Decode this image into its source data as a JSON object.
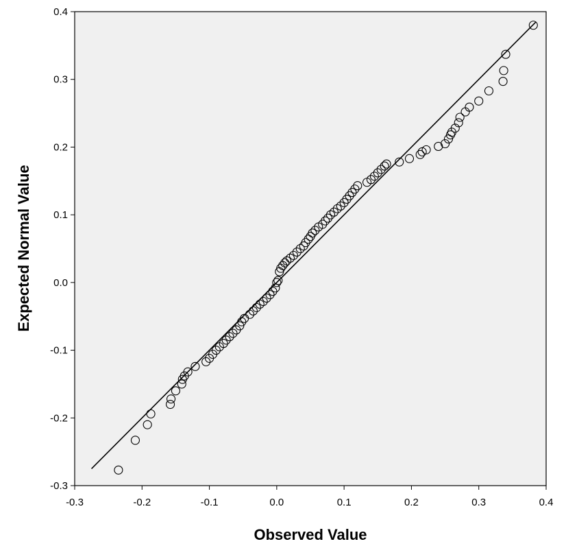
{
  "chart_data": {
    "type": "scatter",
    "subtype": "normal-qq-plot",
    "xlabel": "Observed Value",
    "ylabel": "Expected Normal Value",
    "xlim": [
      -0.3,
      0.4
    ],
    "ylim": [
      -0.3,
      0.4
    ],
    "xticks": [
      "-0.3",
      "-0.2",
      "-0.1",
      "0.0",
      "0.1",
      "0.2",
      "0.3",
      "0.4"
    ],
    "yticks": [
      "-0.3",
      "-0.2",
      "-0.1",
      "0.0",
      "0.1",
      "0.2",
      "0.3",
      "0.4"
    ],
    "grid": false,
    "reference_line": {
      "x": [
        -0.275,
        0.385
      ],
      "y": [
        -0.275,
        0.385
      ]
    },
    "colors": {
      "plot_background": "#f0f0f0",
      "points": "#000000",
      "line": "#000000"
    },
    "points": [
      [
        -0.235,
        -0.277
      ],
      [
        -0.21,
        -0.233
      ],
      [
        -0.192,
        -0.21
      ],
      [
        -0.187,
        -0.194
      ],
      [
        -0.158,
        -0.18
      ],
      [
        -0.157,
        -0.172
      ],
      [
        -0.15,
        -0.16
      ],
      [
        -0.141,
        -0.15
      ],
      [
        -0.14,
        -0.143
      ],
      [
        -0.137,
        -0.138
      ],
      [
        -0.132,
        -0.132
      ],
      [
        -0.121,
        -0.124
      ],
      [
        -0.105,
        -0.117
      ],
      [
        -0.1,
        -0.112
      ],
      [
        -0.095,
        -0.106
      ],
      [
        -0.09,
        -0.1
      ],
      [
        -0.085,
        -0.095
      ],
      [
        -0.079,
        -0.09
      ],
      [
        -0.075,
        -0.085
      ],
      [
        -0.07,
        -0.08
      ],
      [
        -0.065,
        -0.075
      ],
      [
        -0.06,
        -0.07
      ],
      [
        -0.055,
        -0.064
      ],
      [
        -0.052,
        -0.058
      ],
      [
        -0.048,
        -0.053
      ],
      [
        -0.04,
        -0.047
      ],
      [
        -0.035,
        -0.042
      ],
      [
        -0.03,
        -0.037
      ],
      [
        -0.025,
        -0.032
      ],
      [
        -0.02,
        -0.028
      ],
      [
        -0.015,
        -0.023
      ],
      [
        -0.01,
        -0.018
      ],
      [
        -0.006,
        -0.013
      ],
      [
        -0.002,
        -0.008
      ],
      [
        0.0,
        0.0
      ],
      [
        0.002,
        0.003
      ],
      [
        0.004,
        0.016
      ],
      [
        0.006,
        0.021
      ],
      [
        0.009,
        0.025
      ],
      [
        0.012,
        0.029
      ],
      [
        0.015,
        0.032
      ],
      [
        0.02,
        0.036
      ],
      [
        0.025,
        0.04
      ],
      [
        0.03,
        0.045
      ],
      [
        0.035,
        0.05
      ],
      [
        0.04,
        0.054
      ],
      [
        0.043,
        0.059
      ],
      [
        0.047,
        0.064
      ],
      [
        0.05,
        0.068
      ],
      [
        0.053,
        0.073
      ],
      [
        0.057,
        0.077
      ],
      [
        0.062,
        0.082
      ],
      [
        0.068,
        0.086
      ],
      [
        0.072,
        0.091
      ],
      [
        0.076,
        0.095
      ],
      [
        0.08,
        0.1
      ],
      [
        0.085,
        0.104
      ],
      [
        0.09,
        0.109
      ],
      [
        0.095,
        0.113
      ],
      [
        0.1,
        0.118
      ],
      [
        0.104,
        0.123
      ],
      [
        0.108,
        0.128
      ],
      [
        0.112,
        0.133
      ],
      [
        0.116,
        0.138
      ],
      [
        0.12,
        0.143
      ],
      [
        0.134,
        0.148
      ],
      [
        0.14,
        0.152
      ],
      [
        0.145,
        0.157
      ],
      [
        0.15,
        0.162
      ],
      [
        0.155,
        0.167
      ],
      [
        0.16,
        0.172
      ],
      [
        0.163,
        0.175
      ],
      [
        0.182,
        0.178
      ],
      [
        0.197,
        0.183
      ],
      [
        0.213,
        0.189
      ],
      [
        0.216,
        0.193
      ],
      [
        0.222,
        0.196
      ],
      [
        0.24,
        0.201
      ],
      [
        0.25,
        0.205
      ],
      [
        0.255,
        0.212
      ],
      [
        0.258,
        0.218
      ],
      [
        0.26,
        0.222
      ],
      [
        0.265,
        0.228
      ],
      [
        0.27,
        0.236
      ],
      [
        0.272,
        0.244
      ],
      [
        0.28,
        0.252
      ],
      [
        0.286,
        0.259
      ],
      [
        0.3,
        0.268
      ],
      [
        0.315,
        0.283
      ],
      [
        0.336,
        0.297
      ],
      [
        0.337,
        0.313
      ],
      [
        0.34,
        0.337
      ],
      [
        0.381,
        0.38
      ]
    ]
  }
}
